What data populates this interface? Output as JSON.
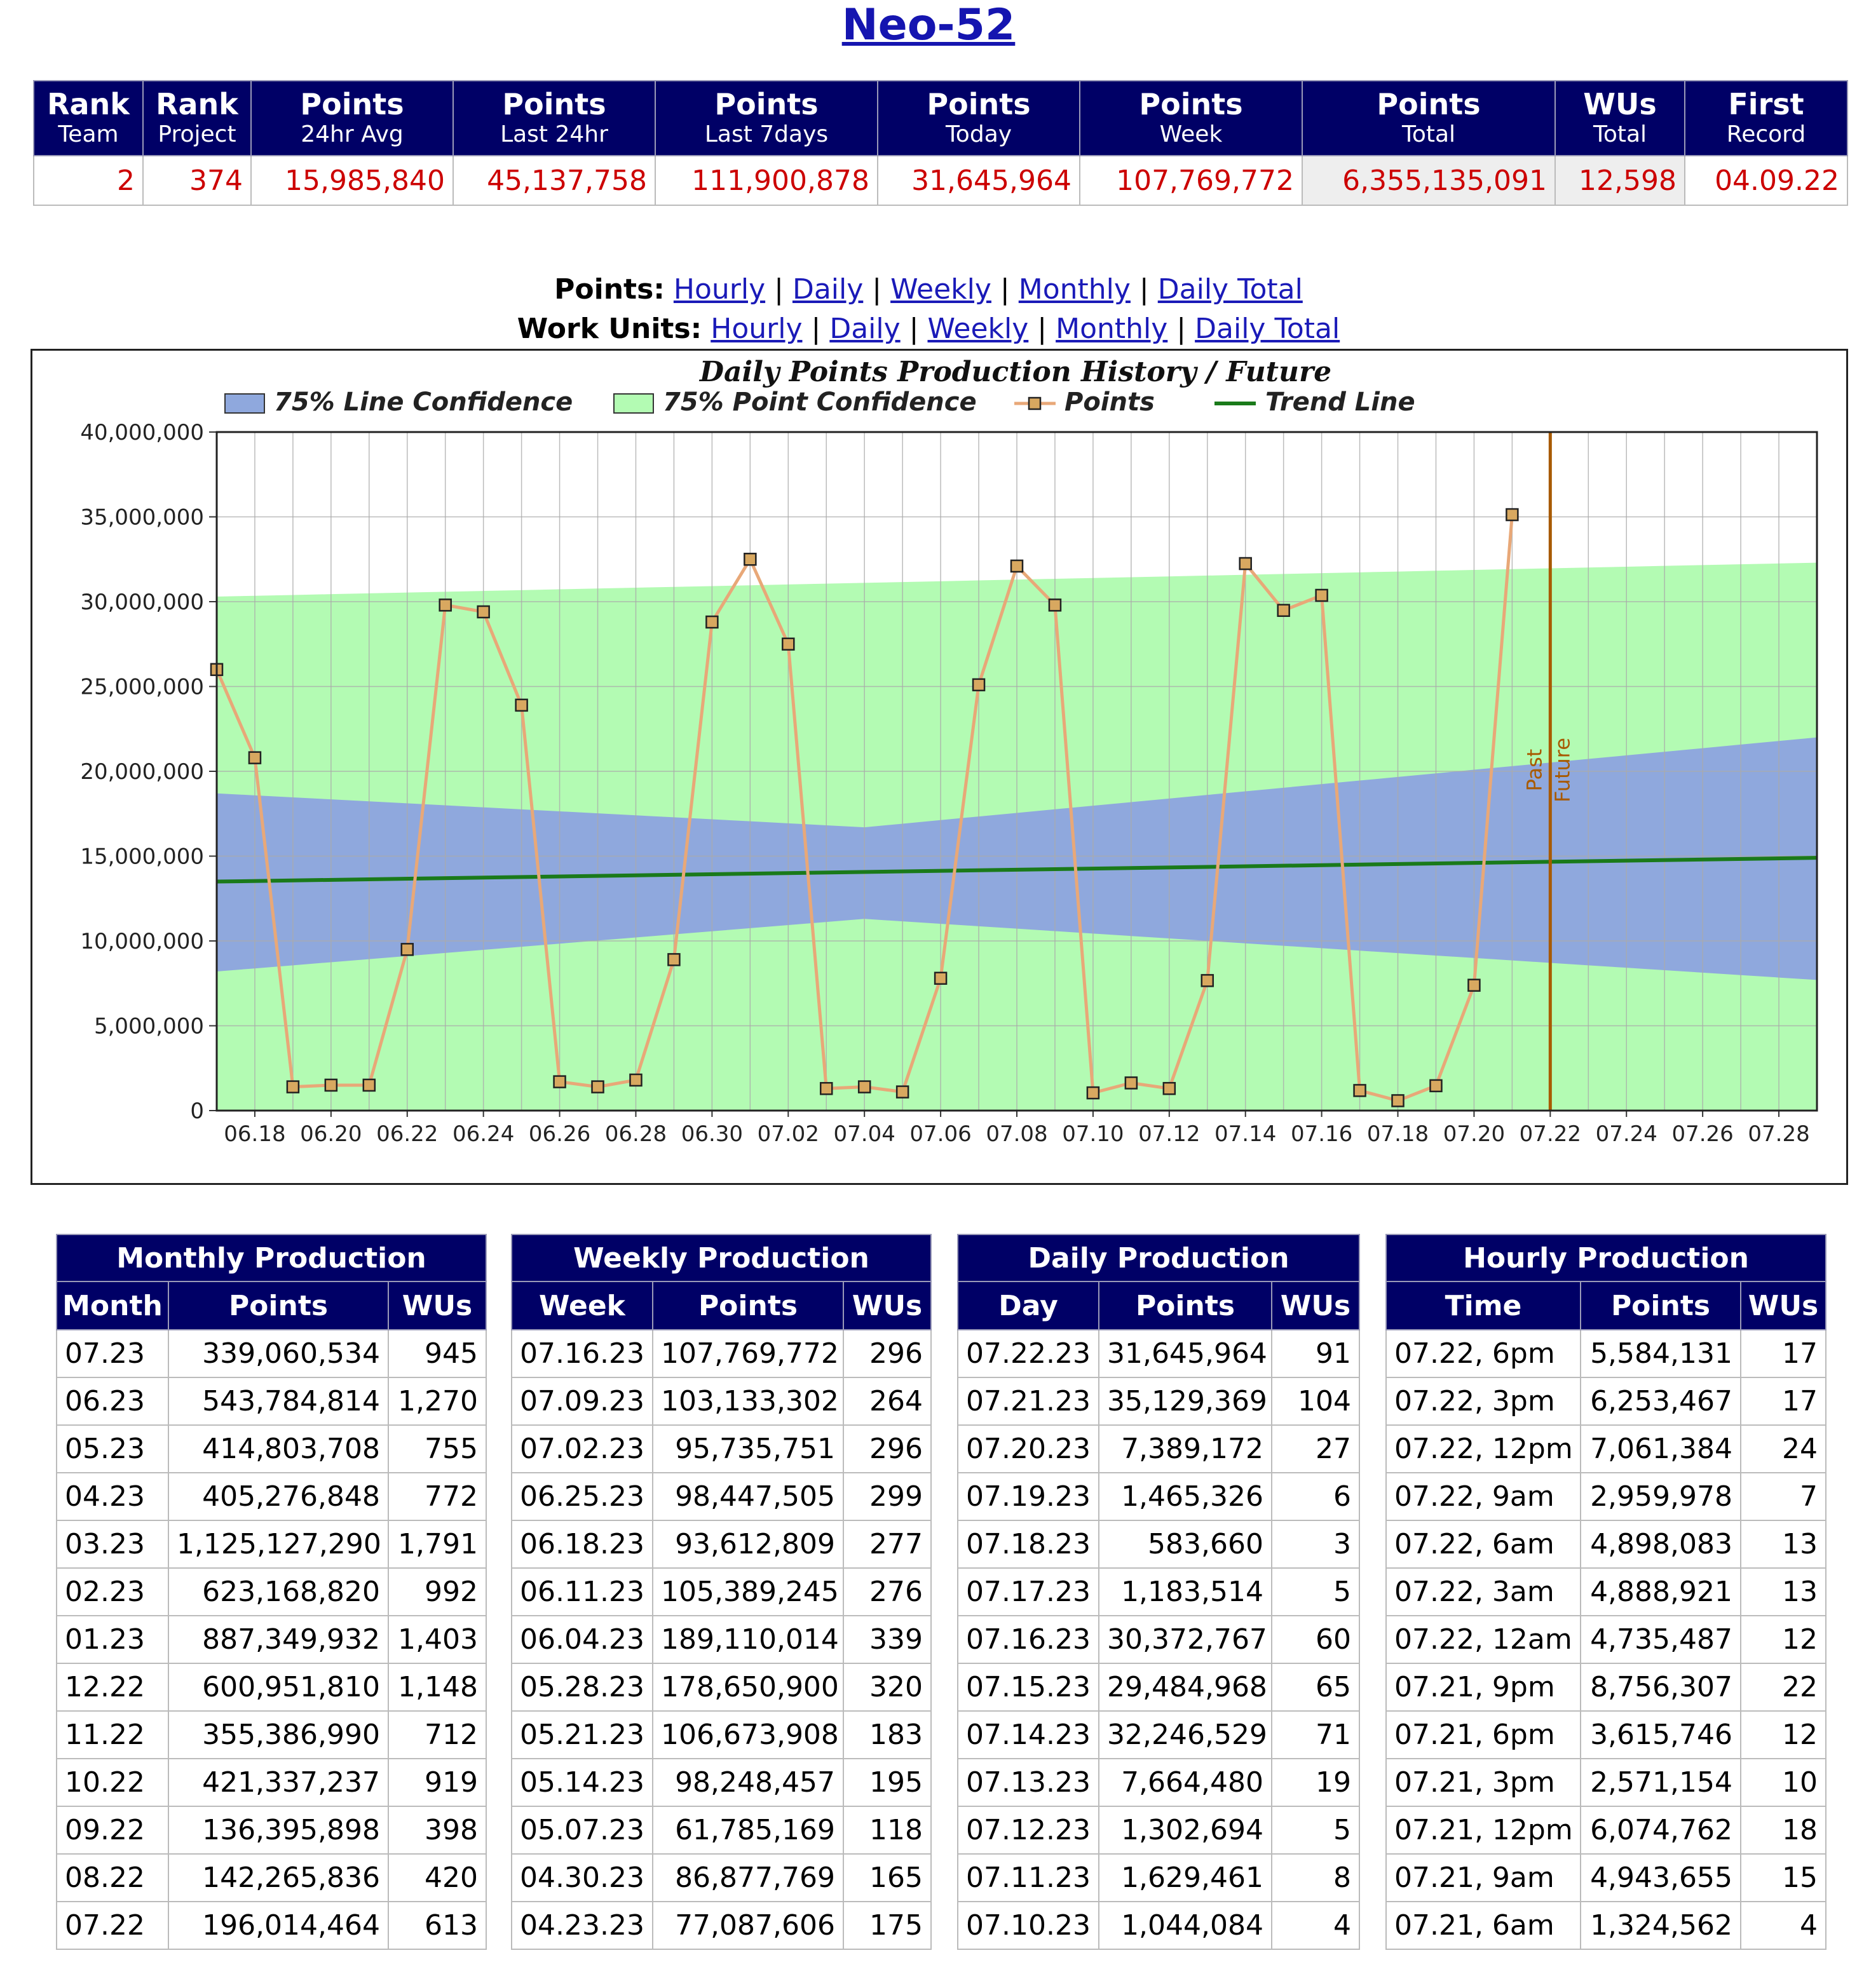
{
  "page_title": "Neo-52",
  "summary": {
    "headers": [
      {
        "l1": "Rank",
        "l2": "Team"
      },
      {
        "l1": "Rank",
        "l2": "Project"
      },
      {
        "l1": "Points",
        "l2": "24hr Avg"
      },
      {
        "l1": "Points",
        "l2": "Last 24hr"
      },
      {
        "l1": "Points",
        "l2": "Last 7days"
      },
      {
        "l1": "Points",
        "l2": "Today"
      },
      {
        "l1": "Points",
        "l2": "Week"
      },
      {
        "l1": "Points",
        "l2": "Total"
      },
      {
        "l1": "WUs",
        "l2": "Total"
      },
      {
        "l1": "First",
        "l2": "Record"
      }
    ],
    "values": [
      "2",
      "374",
      "15,985,840",
      "45,137,758",
      "111,900,878",
      "31,645,964",
      "107,769,772",
      "6,355,135,091",
      "12,598",
      "04.09.22"
    ]
  },
  "links": {
    "points_label": "Points:",
    "wu_label": "Work Units:",
    "items": [
      "Hourly",
      "Daily",
      "Weekly",
      "Monthly",
      "Daily Total"
    ],
    "sep": "|"
  },
  "chart_data": {
    "type": "line",
    "title": "Daily Points Production History / Future",
    "legend": [
      "75% Line Confidence",
      "75% Point Confidence",
      "Points",
      "Trend Line"
    ],
    "legend_position": "top",
    "y_ticks": [
      "40,000,000",
      "35,000,000",
      "30,000,000",
      "25,000,000",
      "20,000,000",
      "15,000,000",
      "10,000,000",
      "5,000,000",
      "0"
    ],
    "ylim": [
      0,
      40000000
    ],
    "x_tick_labels": [
      "06.18",
      "06.20",
      "06.22",
      "06.24",
      "06.26",
      "06.28",
      "06.30",
      "07.02",
      "07.04",
      "07.06",
      "07.08",
      "07.10",
      "07.12",
      "07.14",
      "07.16",
      "07.18",
      "07.20",
      "07.22",
      "07.24",
      "07.26",
      "07.28"
    ],
    "x_range": [
      "06.17",
      "07.29"
    ],
    "divider_x": "07.22",
    "divider_labels": [
      "Past",
      "Future"
    ],
    "grid": true,
    "points_series": {
      "name": "Points",
      "x": [
        "06.17",
        "06.18",
        "06.19",
        "06.20",
        "06.21",
        "06.22",
        "06.23",
        "06.24",
        "06.25",
        "06.26",
        "06.27",
        "06.28",
        "06.29",
        "06.30",
        "07.01",
        "07.02",
        "07.03",
        "07.04",
        "07.05",
        "07.06",
        "07.07",
        "07.08",
        "07.09",
        "07.10",
        "07.11",
        "07.12",
        "07.13",
        "07.14",
        "07.15",
        "07.16",
        "07.17",
        "07.18",
        "07.19",
        "07.20",
        "07.21"
      ],
      "y": [
        26000000,
        20800000,
        1400000,
        1500000,
        1500000,
        9500000,
        29800000,
        29400000,
        23900000,
        1700000,
        1400000,
        1800000,
        8900000,
        28800000,
        32500000,
        27500000,
        1300000,
        1400000,
        1100000,
        7800000,
        25100000,
        32100000,
        29800000,
        1044084,
        1629461,
        1302694,
        7664480,
        32246529,
        29484968,
        30372767,
        1183514,
        583660,
        1465326,
        7389172,
        35129369
      ]
    },
    "trend_line": {
      "name": "Trend Line",
      "x": [
        "06.17",
        "07.29"
      ],
      "y": [
        13500000,
        14900000
      ]
    },
    "line_confidence_band": {
      "name": "75% Line Confidence",
      "x": [
        "06.17",
        "07.04",
        "07.29"
      ],
      "upper": [
        18700000,
        16700000,
        22000000
      ],
      "lower": [
        8200000,
        11300000,
        7700000
      ]
    },
    "point_confidence_band": {
      "name": "75% Point Confidence",
      "x": [
        "06.17",
        "07.29"
      ],
      "upper": [
        30300000,
        32300000
      ],
      "lower": [
        0,
        0
      ]
    },
    "colors": {
      "point_band": "#b3fbb3",
      "line_band": "#8fa8dd",
      "points_line": "#e8a878",
      "marker": "#d8a860",
      "trend": "#1a7a1a",
      "divider": "#a85a00"
    }
  },
  "monthly": {
    "caption": "Monthly Production",
    "headers": [
      "Month",
      "Points",
      "WUs"
    ],
    "rows": [
      [
        "07.23",
        "339,060,534",
        "945"
      ],
      [
        "06.23",
        "543,784,814",
        "1,270"
      ],
      [
        "05.23",
        "414,803,708",
        "755"
      ],
      [
        "04.23",
        "405,276,848",
        "772"
      ],
      [
        "03.23",
        "1,125,127,290",
        "1,791"
      ],
      [
        "02.23",
        "623,168,820",
        "992"
      ],
      [
        "01.23",
        "887,349,932",
        "1,403"
      ],
      [
        "12.22",
        "600,951,810",
        "1,148"
      ],
      [
        "11.22",
        "355,386,990",
        "712"
      ],
      [
        "10.22",
        "421,337,237",
        "919"
      ],
      [
        "09.22",
        "136,395,898",
        "398"
      ],
      [
        "08.22",
        "142,265,836",
        "420"
      ],
      [
        "07.22",
        "196,014,464",
        "613"
      ]
    ]
  },
  "weekly": {
    "caption": "Weekly Production",
    "headers": [
      "Week",
      "Points",
      "WUs"
    ],
    "rows": [
      [
        "07.16.23",
        "107,769,772",
        "296"
      ],
      [
        "07.09.23",
        "103,133,302",
        "264"
      ],
      [
        "07.02.23",
        "95,735,751",
        "296"
      ],
      [
        "06.25.23",
        "98,447,505",
        "299"
      ],
      [
        "06.18.23",
        "93,612,809",
        "277"
      ],
      [
        "06.11.23",
        "105,389,245",
        "276"
      ],
      [
        "06.04.23",
        "189,110,014",
        "339"
      ],
      [
        "05.28.23",
        "178,650,900",
        "320"
      ],
      [
        "05.21.23",
        "106,673,908",
        "183"
      ],
      [
        "05.14.23",
        "98,248,457",
        "195"
      ],
      [
        "05.07.23",
        "61,785,169",
        "118"
      ],
      [
        "04.30.23",
        "86,877,769",
        "165"
      ],
      [
        "04.23.23",
        "77,087,606",
        "175"
      ]
    ]
  },
  "daily": {
    "caption": "Daily Production",
    "headers": [
      "Day",
      "Points",
      "WUs"
    ],
    "rows": [
      [
        "07.22.23",
        "31,645,964",
        "91"
      ],
      [
        "07.21.23",
        "35,129,369",
        "104"
      ],
      [
        "07.20.23",
        "7,389,172",
        "27"
      ],
      [
        "07.19.23",
        "1,465,326",
        "6"
      ],
      [
        "07.18.23",
        "583,660",
        "3"
      ],
      [
        "07.17.23",
        "1,183,514",
        "5"
      ],
      [
        "07.16.23",
        "30,372,767",
        "60"
      ],
      [
        "07.15.23",
        "29,484,968",
        "65"
      ],
      [
        "07.14.23",
        "32,246,529",
        "71"
      ],
      [
        "07.13.23",
        "7,664,480",
        "19"
      ],
      [
        "07.12.23",
        "1,302,694",
        "5"
      ],
      [
        "07.11.23",
        "1,629,461",
        "8"
      ],
      [
        "07.10.23",
        "1,044,084",
        "4"
      ]
    ]
  },
  "hourly": {
    "caption": "Hourly Production",
    "headers": [
      "Time",
      "Points",
      "WUs"
    ],
    "rows": [
      [
        "07.22, 6pm",
        "5,584,131",
        "17"
      ],
      [
        "07.22, 3pm",
        "6,253,467",
        "17"
      ],
      [
        "07.22, 12pm",
        "7,061,384",
        "24"
      ],
      [
        "07.22, 9am",
        "2,959,978",
        "7"
      ],
      [
        "07.22, 6am",
        "4,898,083",
        "13"
      ],
      [
        "07.22, 3am",
        "4,888,921",
        "13"
      ],
      [
        "07.22, 12am",
        "4,735,487",
        "12"
      ],
      [
        "07.21, 9pm",
        "8,756,307",
        "22"
      ],
      [
        "07.21, 6pm",
        "3,615,746",
        "12"
      ],
      [
        "07.21, 3pm",
        "2,571,154",
        "10"
      ],
      [
        "07.21, 12pm",
        "6,074,762",
        "18"
      ],
      [
        "07.21, 9am",
        "4,943,655",
        "15"
      ],
      [
        "07.21, 6am",
        "1,324,562",
        "4"
      ]
    ]
  }
}
